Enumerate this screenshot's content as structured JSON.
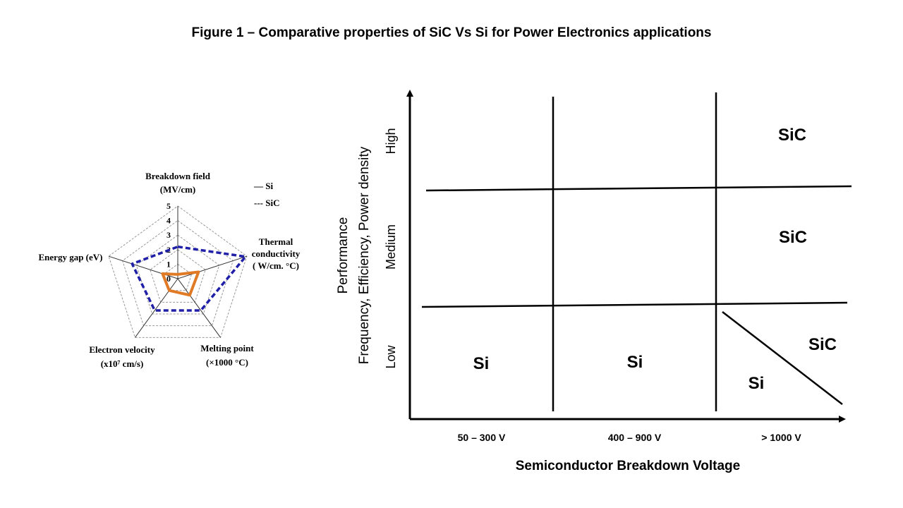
{
  "title": "Figure 1  – Comparative properties of SiC Vs Si for Power Electronics applications",
  "chart_data": [
    {
      "type": "radar",
      "axes": [
        {
          "label": [
            "Breakdown field",
            "(MV/cm)"
          ]
        },
        {
          "label": [
            "Thermal",
            "conductivity",
            "( W/cm. °C)"
          ]
        },
        {
          "label": [
            "Melting point",
            "(×1000 °C)"
          ]
        },
        {
          "label": [
            "Electron velocity",
            "(x10⁷ cm/s)"
          ]
        },
        {
          "label": [
            "Energy gap (eV)"
          ]
        }
      ],
      "ticks": [
        "0",
        "1",
        "2",
        "3",
        "4",
        "5"
      ],
      "range": [
        0,
        5
      ],
      "series": [
        {
          "name": "Si",
          "legend": "— Si",
          "color": "#e07a25",
          "dash": "solid",
          "values": [
            0.3,
            1.5,
            1.4,
            1.0,
            1.1
          ]
        },
        {
          "name": "SiC",
          "legend": "--- SiC",
          "color": "#1f1fa8",
          "dash": "dashed",
          "values": [
            2.2,
            4.9,
            2.7,
            2.7,
            3.3
          ]
        }
      ]
    },
    {
      "type": "table",
      "ylabel": [
        "Performance",
        "Frequency, Efficiency, Power density"
      ],
      "xlabel": "Semiconductor Breakdown Voltage",
      "columns": [
        "50 – 300 V",
        "400 – 900 V",
        "> 1000 V"
      ],
      "rows": [
        "High",
        "Medium",
        "Low"
      ],
      "cells": [
        {
          "row": "High",
          "col": "> 1000 V",
          "text": "SiC"
        },
        {
          "row": "Medium",
          "col": "> 1000 V",
          "text": "SiC"
        },
        {
          "row": "Low",
          "col": "50 – 300 V",
          "text": "Si"
        },
        {
          "row": "Low",
          "col": "400 – 900 V",
          "text": "Si"
        },
        {
          "row": "Low",
          "col": "> 1000 V",
          "text": "SiC",
          "position": "upper-right"
        },
        {
          "row": "Low",
          "col": "> 1000 V",
          "text": "Si",
          "position": "lower-left"
        }
      ]
    }
  ]
}
